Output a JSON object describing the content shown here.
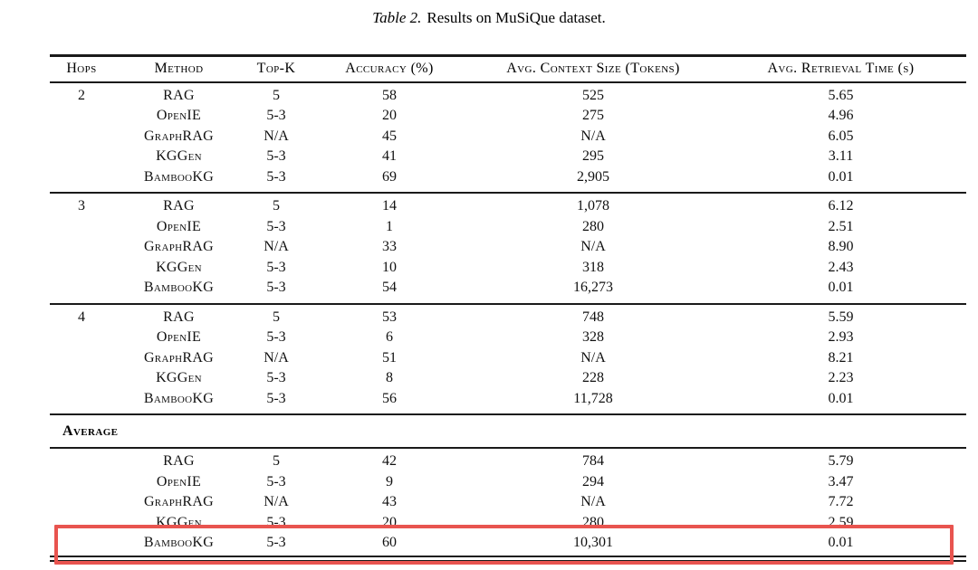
{
  "caption": {
    "label": "Table 2.",
    "text": "Results on MuSiQue dataset."
  },
  "table": {
    "headers": [
      "Hops",
      "Method",
      "Top-K",
      "Accuracy (%)",
      "Avg. Context Size (Tokens)",
      "Avg. Retrieval Time (s)"
    ],
    "average_label": "Average",
    "groups": [
      {
        "hops": "2",
        "rows": [
          {
            "method": "RAG",
            "top_k": "5",
            "accuracy": "58",
            "context": "525",
            "time": "5.65"
          },
          {
            "method": "OpenIE",
            "top_k": "5-3",
            "accuracy": "20",
            "context": "275",
            "time": "4.96"
          },
          {
            "method": "GraphRAG",
            "top_k": "N/A",
            "accuracy": "45",
            "context": "N/A",
            "time": "6.05"
          },
          {
            "method": "KGGen",
            "top_k": "5-3",
            "accuracy": "41",
            "context": "295",
            "time": "3.11"
          },
          {
            "method": "BambooKG",
            "top_k": "5-3",
            "accuracy": "69",
            "context": "2,905",
            "time": "0.01"
          }
        ]
      },
      {
        "hops": "3",
        "rows": [
          {
            "method": "RAG",
            "top_k": "5",
            "accuracy": "14",
            "context": "1,078",
            "time": "6.12"
          },
          {
            "method": "OpenIE",
            "top_k": "5-3",
            "accuracy": "1",
            "context": "280",
            "time": "2.51"
          },
          {
            "method": "GraphRAG",
            "top_k": "N/A",
            "accuracy": "33",
            "context": "N/A",
            "time": "8.90"
          },
          {
            "method": "KGGen",
            "top_k": "5-3",
            "accuracy": "10",
            "context": "318",
            "time": "2.43"
          },
          {
            "method": "BambooKG",
            "top_k": "5-3",
            "accuracy": "54",
            "context": "16,273",
            "time": "0.01"
          }
        ]
      },
      {
        "hops": "4",
        "rows": [
          {
            "method": "RAG",
            "top_k": "5",
            "accuracy": "53",
            "context": "748",
            "time": "5.59"
          },
          {
            "method": "OpenIE",
            "top_k": "5-3",
            "accuracy": "6",
            "context": "328",
            "time": "2.93"
          },
          {
            "method": "GraphRAG",
            "top_k": "N/A",
            "accuracy": "51",
            "context": "N/A",
            "time": "8.21"
          },
          {
            "method": "KGGen",
            "top_k": "5-3",
            "accuracy": "8",
            "context": "228",
            "time": "2.23"
          },
          {
            "method": "BambooKG",
            "top_k": "5-3",
            "accuracy": "56",
            "context": "11,728",
            "time": "0.01"
          }
        ]
      },
      {
        "hops": "",
        "section": "Average",
        "rows": [
          {
            "method": "RAG",
            "top_k": "5",
            "accuracy": "42",
            "context": "784",
            "time": "5.79"
          },
          {
            "method": "OpenIE",
            "top_k": "5-3",
            "accuracy": "9",
            "context": "294",
            "time": "3.47"
          },
          {
            "method": "GraphRAG",
            "top_k": "N/A",
            "accuracy": "43",
            "context": "N/A",
            "time": "7.72"
          },
          {
            "method": "KGGen",
            "top_k": "5-3",
            "accuracy": "20",
            "context": "280",
            "time": "2.59"
          },
          {
            "method": "BambooKG",
            "top_k": "5-3",
            "accuracy": "60",
            "context": "10,301",
            "time": "0.01"
          }
        ]
      }
    ],
    "highlight": {
      "section": "Average",
      "row_method": "BambooKG",
      "color": "#e8544f"
    }
  }
}
